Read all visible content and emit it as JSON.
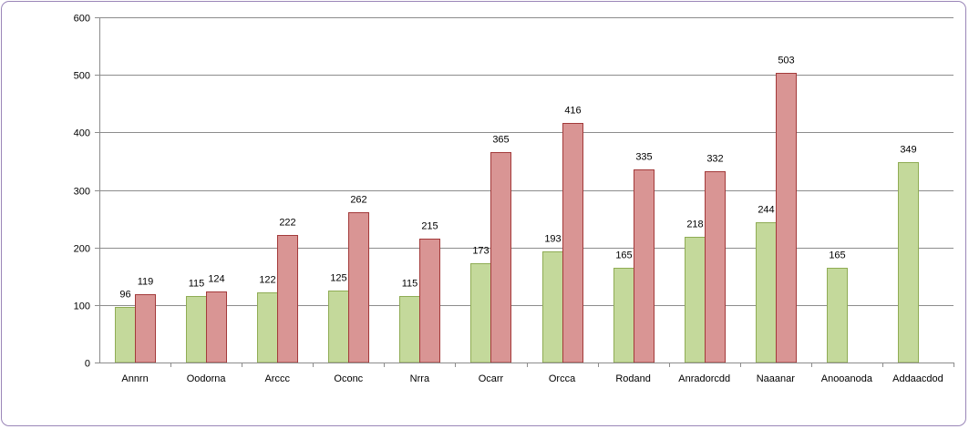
{
  "chart_data": {
    "type": "bar",
    "categories": [
      "Annrn",
      "Oodorna",
      "Arccc",
      "Oconc",
      "Nrra",
      "Ocarr",
      "Orcca",
      "Rodand",
      "Anradorcdd",
      "Naaanar",
      "Anooanoda",
      "Addaacdod"
    ],
    "series": [
      {
        "values": [
          96,
          115,
          122,
          125,
          115,
          173,
          193,
          165,
          218,
          244,
          165,
          349
        ],
        "color": "#c4d99b",
        "stroke": "#8fac54"
      },
      {
        "values": [
          119,
          124,
          222,
          262,
          215,
          365,
          416,
          335,
          332,
          503,
          null,
          null
        ],
        "color": "#d99594",
        "stroke": "#a33a3a"
      }
    ],
    "ylim": [
      0,
      600
    ],
    "yticks": [
      0,
      100,
      200,
      300,
      400,
      500,
      600
    ],
    "grid": true,
    "legend": "none",
    "data_labels": true
  }
}
